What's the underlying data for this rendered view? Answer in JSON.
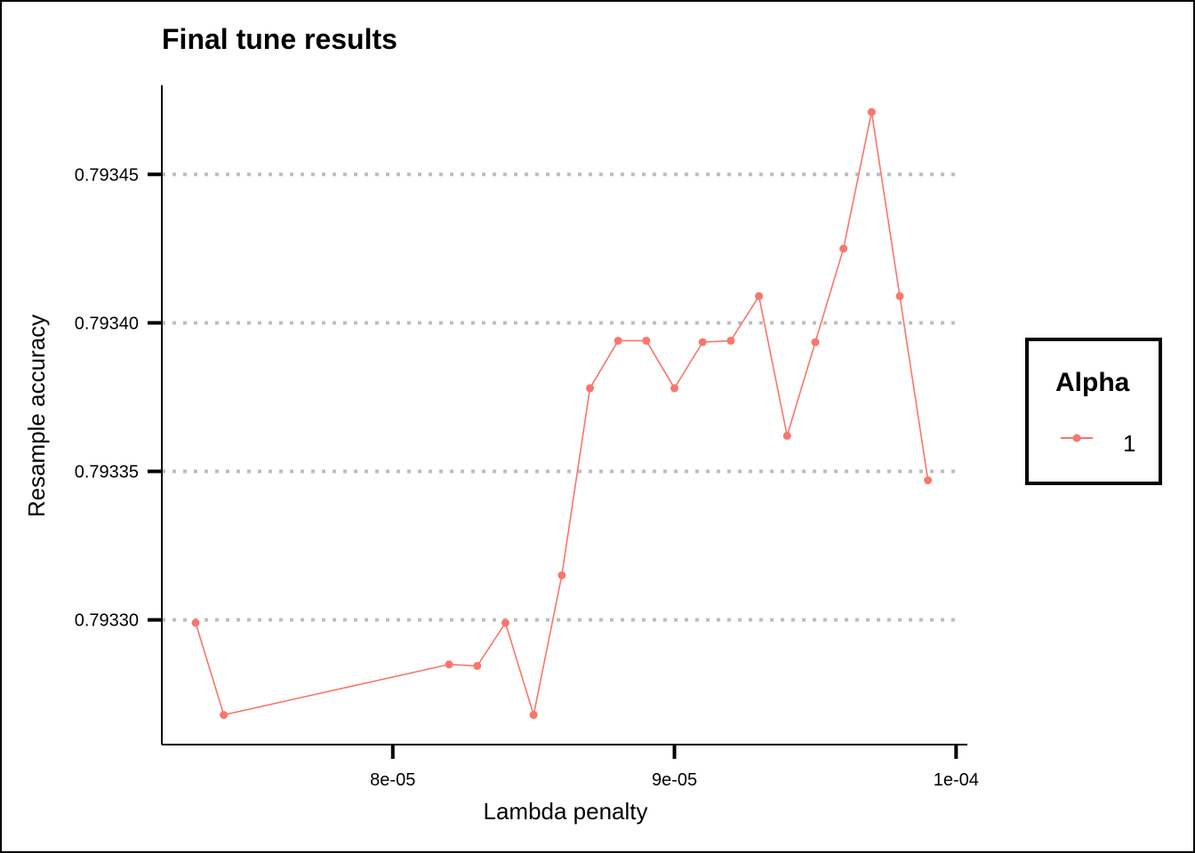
{
  "chart_data": {
    "type": "line",
    "title": "Final tune results",
    "xlabel": "Lambda penalty",
    "ylabel": "Resample accuracy",
    "x_ticks": [
      8e-05,
      9e-05,
      0.0001
    ],
    "x_tick_labels": [
      "8e-05",
      "9e-05",
      "1e-04"
    ],
    "y_ticks": [
      0.7933,
      0.79335,
      0.7934,
      0.79345
    ],
    "y_tick_labels": [
      "0.79330",
      "0.79335",
      "0.79340",
      "0.79345"
    ],
    "xlim": [
      7.18e-05,
      0.0001004
    ],
    "ylim": [
      0.793258,
      0.79348
    ],
    "grid": "horizontal-dotted",
    "legend_title": "Alpha",
    "legend_position": "right",
    "series": [
      {
        "name": "1",
        "color": "#F8766D",
        "x": [
          7.3e-05,
          7.4e-05,
          8.2e-05,
          8.3e-05,
          8.4e-05,
          8.5e-05,
          8.6e-05,
          8.7e-05,
          8.8e-05,
          8.9e-05,
          9e-05,
          9.1e-05,
          9.2e-05,
          9.3e-05,
          9.4e-05,
          9.5e-05,
          9.6e-05,
          9.7e-05,
          9.8e-05,
          9.9e-05
        ],
        "y": [
          0.793299,
          0.793268,
          0.793285,
          0.7932845,
          0.793299,
          0.793268,
          0.793315,
          0.793378,
          0.793394,
          0.793394,
          0.793378,
          0.7933935,
          0.793394,
          0.793409,
          0.793362,
          0.7933935,
          0.793425,
          0.793471,
          0.793409,
          0.793347
        ]
      }
    ]
  }
}
